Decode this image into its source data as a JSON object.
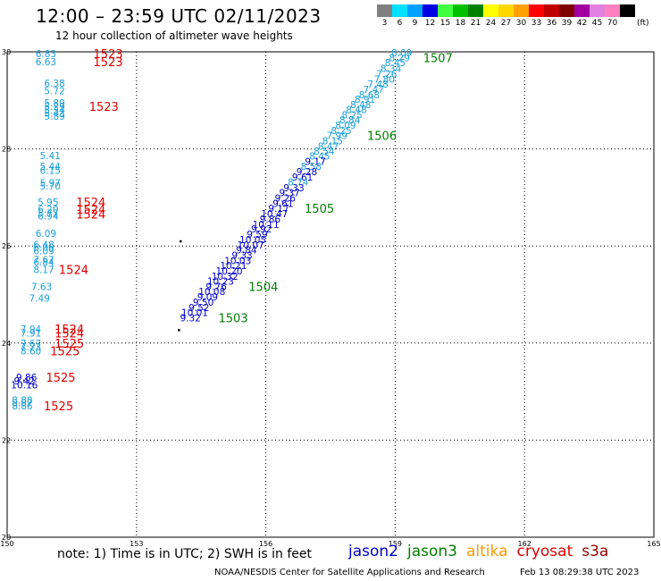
{
  "header": {
    "title": "12:00 – 23:59 UTC 02/11/2023",
    "subtitle": "12 hour collection of altimeter wave heights"
  },
  "color_scale": {
    "unit": "(ft)",
    "entries": [
      {
        "label": "3",
        "color": "#808080"
      },
      {
        "label": "6",
        "color": "#00e0ff"
      },
      {
        "label": "9",
        "color": "#00a0ff"
      },
      {
        "label": "12",
        "color": "#0000e0"
      },
      {
        "label": "15",
        "color": "#40ff40"
      },
      {
        "label": "18",
        "color": "#00c000"
      },
      {
        "label": "21",
        "color": "#008000"
      },
      {
        "label": "24",
        "color": "#ffff00"
      },
      {
        "label": "27",
        "color": "#ffd700"
      },
      {
        "label": "30",
        "color": "#ffa000"
      },
      {
        "label": "33",
        "color": "#ff0000"
      },
      {
        "label": "36",
        "color": "#c00000"
      },
      {
        "label": "39",
        "color": "#800000"
      },
      {
        "label": "42",
        "color": "#a000a0"
      },
      {
        "label": "45",
        "color": "#e080e0"
      },
      {
        "label": "70",
        "color": "#ff80c0"
      },
      {
        "label": "",
        "color": "#000000"
      }
    ]
  },
  "axes": {
    "lon_ticks": [
      "150",
      "153",
      "156",
      "159",
      "162",
      "165"
    ],
    "lat_ticks": [
      "30",
      "28",
      "26",
      "24",
      "22",
      "20"
    ]
  },
  "chart_data": {
    "type": "scatter",
    "lon_range": [
      150,
      165
    ],
    "lat_range": [
      20,
      30
    ],
    "colors": {
      "cyan": "#1aa0d8",
      "blue": "#0000c8",
      "red": "#e00000",
      "green": "#008000"
    },
    "wave_heights": [
      {
        "lon": 150.9,
        "lat": 29.96,
        "v": "6.83",
        "c": "cyan"
      },
      {
        "lon": 150.9,
        "lat": 29.8,
        "v": "6.63",
        "c": "cyan"
      },
      {
        "lon": 151.1,
        "lat": 29.36,
        "v": "6.38",
        "c": "cyan"
      },
      {
        "lon": 151.1,
        "lat": 29.2,
        "v": "5.72",
        "c": "cyan"
      },
      {
        "lon": 151.1,
        "lat": 28.95,
        "v": "5.89",
        "c": "cyan"
      },
      {
        "lon": 151.1,
        "lat": 28.88,
        "v": "5.29",
        "c": "cyan"
      },
      {
        "lon": 151.1,
        "lat": 28.8,
        "v": "5.34",
        "c": "cyan"
      },
      {
        "lon": 151.1,
        "lat": 28.74,
        "v": "5.43",
        "c": "cyan"
      },
      {
        "lon": 151.1,
        "lat": 28.67,
        "v": "5.89",
        "c": "cyan"
      },
      {
        "lon": 151.0,
        "lat": 27.86,
        "v": "5.41",
        "c": "cyan"
      },
      {
        "lon": 151.0,
        "lat": 27.64,
        "v": "5.44",
        "c": "cyan"
      },
      {
        "lon": 151.0,
        "lat": 27.56,
        "v": "6.15",
        "c": "cyan"
      },
      {
        "lon": 151.0,
        "lat": 27.3,
        "v": "5.97",
        "c": "cyan"
      },
      {
        "lon": 151.0,
        "lat": 27.24,
        "v": "5.70",
        "c": "cyan"
      },
      {
        "lon": 150.95,
        "lat": 26.91,
        "v": "5.95",
        "c": "cyan"
      },
      {
        "lon": 150.95,
        "lat": 26.76,
        "v": "6.20",
        "c": "cyan"
      },
      {
        "lon": 150.95,
        "lat": 26.68,
        "v": "5.77",
        "c": "cyan"
      },
      {
        "lon": 150.95,
        "lat": 26.62,
        "v": "6.94",
        "c": "cyan"
      },
      {
        "lon": 150.9,
        "lat": 26.26,
        "v": "6.09",
        "c": "cyan"
      },
      {
        "lon": 150.85,
        "lat": 26.03,
        "v": "6.48",
        "c": "cyan"
      },
      {
        "lon": 150.85,
        "lat": 25.98,
        "v": "6.06",
        "c": "cyan"
      },
      {
        "lon": 150.85,
        "lat": 25.9,
        "v": "6.09",
        "c": "cyan"
      },
      {
        "lon": 150.85,
        "lat": 25.72,
        "v": "7.67",
        "c": "cyan"
      },
      {
        "lon": 150.85,
        "lat": 25.67,
        "v": "6.84",
        "c": "cyan"
      },
      {
        "lon": 150.85,
        "lat": 25.52,
        "v": "8.17",
        "c": "cyan"
      },
      {
        "lon": 150.8,
        "lat": 25.17,
        "v": "7.63",
        "c": "cyan"
      },
      {
        "lon": 150.75,
        "lat": 24.93,
        "v": "7.49",
        "c": "cyan"
      },
      {
        "lon": 150.55,
        "lat": 24.29,
        "v": "7.94",
        "c": "cyan"
      },
      {
        "lon": 150.55,
        "lat": 24.21,
        "v": "7.91",
        "c": "cyan"
      },
      {
        "lon": 150.55,
        "lat": 24.0,
        "v": "7.67",
        "c": "cyan"
      },
      {
        "lon": 150.55,
        "lat": 23.92,
        "v": "7.73",
        "c": "cyan"
      },
      {
        "lon": 150.55,
        "lat": 23.84,
        "v": "8.60",
        "c": "cyan"
      },
      {
        "lon": 150.45,
        "lat": 23.3,
        "v": "9.86",
        "c": "blue"
      },
      {
        "lon": 150.4,
        "lat": 23.22,
        "v": "9.42",
        "c": "blue"
      },
      {
        "lon": 150.4,
        "lat": 23.14,
        "v": "10.16",
        "c": "blue"
      },
      {
        "lon": 150.35,
        "lat": 22.83,
        "v": "8.88",
        "c": "cyan"
      },
      {
        "lon": 150.35,
        "lat": 22.77,
        "v": "8.87",
        "c": "cyan"
      },
      {
        "lon": 150.35,
        "lat": 22.71,
        "v": "8.86",
        "c": "cyan"
      },
      {
        "lon": 159.15,
        "lat": 29.98,
        "v": "8.09",
        "c": "cyan"
      },
      {
        "lon": 159.1,
        "lat": 29.88,
        "v": "8.29",
        "c": "cyan"
      },
      {
        "lon": 159.0,
        "lat": 29.78,
        "v": "8.45",
        "c": "cyan"
      },
      {
        "lon": 158.9,
        "lat": 29.66,
        "v": "8.34",
        "c": "cyan"
      },
      {
        "lon": 158.8,
        "lat": 29.55,
        "v": "7.26",
        "c": "cyan"
      },
      {
        "lon": 158.75,
        "lat": 29.44,
        "v": "7.80",
        "c": "cyan"
      },
      {
        "lon": 158.6,
        "lat": 29.34,
        "v": "7.48",
        "c": "cyan"
      },
      {
        "lon": 158.5,
        "lat": 29.23,
        "v": "7.47",
        "c": "cyan"
      },
      {
        "lon": 158.4,
        "lat": 29.12,
        "v": "8.68",
        "c": "cyan"
      },
      {
        "lon": 158.3,
        "lat": 29.02,
        "v": "8.91",
        "c": "cyan"
      },
      {
        "lon": 158.2,
        "lat": 28.91,
        "v": "8.48",
        "c": "cyan"
      },
      {
        "lon": 158.1,
        "lat": 28.81,
        "v": "8.48",
        "c": "cyan"
      },
      {
        "lon": 158.0,
        "lat": 28.7,
        "v": "8.25",
        "c": "cyan"
      },
      {
        "lon": 157.95,
        "lat": 28.6,
        "v": "8.84",
        "c": "cyan"
      },
      {
        "lon": 157.85,
        "lat": 28.49,
        "v": "8.09",
        "c": "cyan"
      },
      {
        "lon": 157.75,
        "lat": 28.38,
        "v": "8.25",
        "c": "cyan"
      },
      {
        "lon": 157.65,
        "lat": 28.28,
        "v": "7.99",
        "c": "cyan"
      },
      {
        "lon": 157.55,
        "lat": 28.17,
        "v": "8.15",
        "c": "cyan"
      },
      {
        "lon": 157.45,
        "lat": 28.06,
        "v": "8.47",
        "c": "cyan"
      },
      {
        "lon": 157.35,
        "lat": 27.96,
        "v": "8.54",
        "c": "cyan"
      },
      {
        "lon": 157.25,
        "lat": 27.85,
        "v": "8.45",
        "c": "cyan"
      },
      {
        "lon": 157.15,
        "lat": 27.74,
        "v": "9.17",
        "c": "blue"
      },
      {
        "lon": 157.05,
        "lat": 27.64,
        "v": "8.58",
        "c": "cyan"
      },
      {
        "lon": 156.95,
        "lat": 27.53,
        "v": "9.28",
        "c": "blue"
      },
      {
        "lon": 156.85,
        "lat": 27.42,
        "v": "9.61",
        "c": "blue"
      },
      {
        "lon": 156.75,
        "lat": 27.32,
        "v": "8.74",
        "c": "cyan"
      },
      {
        "lon": 156.65,
        "lat": 27.2,
        "v": "9.33",
        "c": "blue"
      },
      {
        "lon": 156.55,
        "lat": 27.1,
        "v": "9.37",
        "c": "blue"
      },
      {
        "lon": 156.45,
        "lat": 26.99,
        "v": "9.26",
        "c": "blue"
      },
      {
        "lon": 156.4,
        "lat": 26.88,
        "v": "9.61",
        "c": "blue"
      },
      {
        "lon": 156.3,
        "lat": 26.78,
        "v": "9.17",
        "c": "blue"
      },
      {
        "lon": 156.2,
        "lat": 26.67,
        "v": "10.47",
        "c": "blue"
      },
      {
        "lon": 156.1,
        "lat": 26.56,
        "v": "9.86",
        "c": "blue"
      },
      {
        "lon": 156.0,
        "lat": 26.45,
        "v": "10.11",
        "c": "blue"
      },
      {
        "lon": 155.9,
        "lat": 26.35,
        "v": "9.92",
        "c": "blue"
      },
      {
        "lon": 155.8,
        "lat": 26.24,
        "v": "9.59",
        "c": "blue"
      },
      {
        "lon": 155.7,
        "lat": 26.13,
        "v": "10.05",
        "c": "blue"
      },
      {
        "lon": 155.65,
        "lat": 26.02,
        "v": "10.07",
        "c": "blue"
      },
      {
        "lon": 155.55,
        "lat": 25.92,
        "v": "9.84",
        "c": "blue"
      },
      {
        "lon": 155.45,
        "lat": 25.81,
        "v": "9.33",
        "c": "blue"
      },
      {
        "lon": 155.35,
        "lat": 25.7,
        "v": "10.03",
        "c": "blue"
      },
      {
        "lon": 155.25,
        "lat": 25.6,
        "v": "10.21",
        "c": "blue"
      },
      {
        "lon": 155.15,
        "lat": 25.49,
        "v": "10.20",
        "c": "blue"
      },
      {
        "lon": 155.05,
        "lat": 25.38,
        "v": "10.32",
        "c": "blue"
      },
      {
        "lon": 154.95,
        "lat": 25.28,
        "v": "10.23",
        "c": "blue"
      },
      {
        "lon": 154.85,
        "lat": 25.17,
        "v": "9.76",
        "c": "blue"
      },
      {
        "lon": 154.75,
        "lat": 25.06,
        "v": "10.08",
        "c": "blue"
      },
      {
        "lon": 154.65,
        "lat": 24.95,
        "v": "9.09",
        "c": "blue"
      },
      {
        "lon": 154.55,
        "lat": 24.84,
        "v": "9.50",
        "c": "blue"
      },
      {
        "lon": 154.45,
        "lat": 24.73,
        "v": "9.52",
        "c": "blue"
      },
      {
        "lon": 154.35,
        "lat": 24.63,
        "v": "10.01",
        "c": "blue"
      },
      {
        "lon": 154.25,
        "lat": 24.52,
        "v": "9.32",
        "c": "blue"
      }
    ],
    "orbit_labels": [
      {
        "lon": 152.0,
        "lat": 29.96,
        "v": "1523",
        "c": "red"
      },
      {
        "lon": 152.0,
        "lat": 29.8,
        "v": "1523",
        "c": "red"
      },
      {
        "lon": 151.9,
        "lat": 28.88,
        "v": "1523",
        "c": "red"
      },
      {
        "lon": 151.6,
        "lat": 26.91,
        "v": "1524",
        "c": "red"
      },
      {
        "lon": 151.6,
        "lat": 26.76,
        "v": "1524",
        "c": "red"
      },
      {
        "lon": 151.6,
        "lat": 26.66,
        "v": "1524",
        "c": "red"
      },
      {
        "lon": 151.2,
        "lat": 25.52,
        "v": "1524",
        "c": "red"
      },
      {
        "lon": 151.1,
        "lat": 24.29,
        "v": "1524",
        "c": "red"
      },
      {
        "lon": 151.1,
        "lat": 24.21,
        "v": "1524",
        "c": "red"
      },
      {
        "lon": 151.1,
        "lat": 24.0,
        "v": "1525",
        "c": "red"
      },
      {
        "lon": 151.0,
        "lat": 23.84,
        "v": "1525",
        "c": "red"
      },
      {
        "lon": 150.9,
        "lat": 23.3,
        "v": "1525",
        "c": "red"
      },
      {
        "lon": 150.85,
        "lat": 22.71,
        "v": "1525",
        "c": "red"
      },
      {
        "lon": 159.65,
        "lat": 29.88,
        "v": "1507",
        "c": "green"
      },
      {
        "lon": 158.35,
        "lat": 28.28,
        "v": "1506",
        "c": "green"
      },
      {
        "lon": 156.9,
        "lat": 26.78,
        "v": "1505",
        "c": "green"
      },
      {
        "lon": 155.6,
        "lat": 25.17,
        "v": "1504",
        "c": "green"
      },
      {
        "lon": 154.9,
        "lat": 24.52,
        "v": "1503",
        "c": "green"
      }
    ],
    "island_dots": [
      {
        "lon": 154.02,
        "lat": 26.1
      },
      {
        "lon": 153.98,
        "lat": 24.27
      }
    ]
  },
  "footer": {
    "note": "note:  1) Time is in UTC;  2) SWH is in feet",
    "satellites": [
      {
        "name": "jason2",
        "color": "#0000c8"
      },
      {
        "name": "jason3",
        "color": "#008000"
      },
      {
        "name": "altika",
        "color": "#ff9a00"
      },
      {
        "name": "cryosat",
        "color": "#e00000"
      },
      {
        "name": "s3a",
        "color": "#9a0000"
      }
    ],
    "credit": "NOAA/NESDIS Center for Satellite Applications and Research",
    "timestamp": "Feb 13 08:29:38 UTC 2023"
  }
}
